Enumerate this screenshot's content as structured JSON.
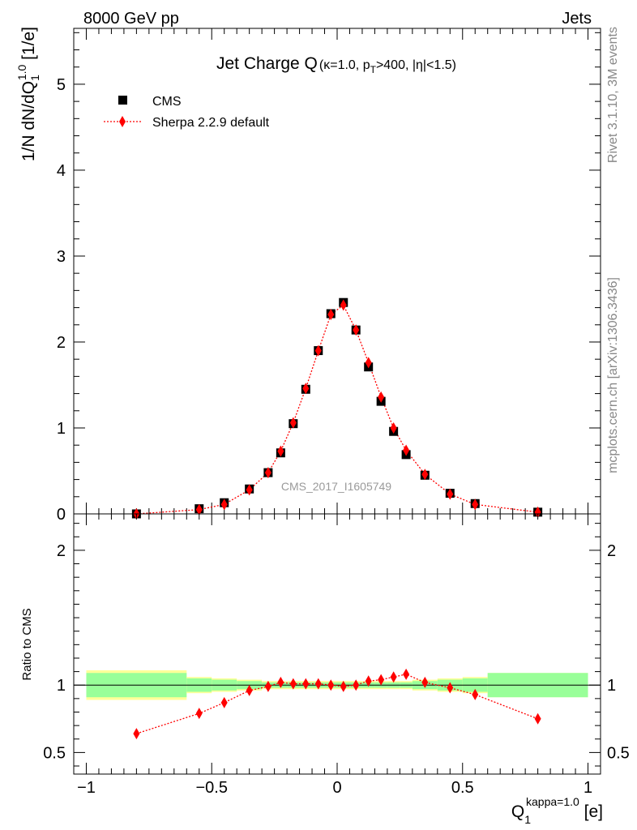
{
  "header": {
    "left": "8000 GeV pp",
    "right": "Jets"
  },
  "side_labels": {
    "rivet": "Rivet 3.1.10,  3M events",
    "mcplots": "mcplots.cern.ch [arXiv:1306.3436]"
  },
  "title": {
    "main": "Jet Charge Q",
    "params": "(κ=1.0, p",
    "params_sub": "T",
    "params_end": ">400, |η|<1.5)"
  },
  "watermark": "CMS_2017_I1605749",
  "y_label": {
    "pre": "1/N dN/dQ",
    "sub": "1",
    "sup": "1.0",
    "post": " [1/e]"
  },
  "ratio_label": "Ratio to CMS",
  "x_label": {
    "base": "Q",
    "sub": "1",
    "sup": "kappa=1.0",
    "post": " [e]"
  },
  "legend": {
    "data_label": "CMS",
    "mc_label": "Sherpa 2.2.9 default"
  },
  "colors": {
    "data": "#000000",
    "mc": "#ff0000",
    "band_inner": "#99ff99",
    "band_outer": "#ffff99"
  },
  "chart_data": [
    {
      "type": "scatter",
      "panel": "main",
      "xlim": [
        -1.05,
        1.05
      ],
      "ylim": [
        0,
        5.65
      ],
      "yticks": [
        0,
        1,
        2,
        3,
        4,
        5
      ],
      "series": [
        {
          "name": "CMS",
          "marker": "square",
          "x": [
            -0.8,
            -0.55,
            -0.45,
            -0.35,
            -0.275,
            -0.225,
            -0.175,
            -0.125,
            -0.075,
            -0.025,
            0.025,
            0.075,
            0.125,
            0.175,
            0.225,
            0.275,
            0.35,
            0.45,
            0.55,
            0.8
          ],
          "y": [
            0.0,
            0.06,
            0.13,
            0.29,
            0.48,
            0.71,
            1.05,
            1.45,
            1.9,
            2.33,
            2.46,
            2.14,
            1.71,
            1.31,
            0.96,
            0.69,
            0.45,
            0.24,
            0.12,
            0.02
          ]
        },
        {
          "name": "Sherpa 2.2.9 default",
          "marker": "diamond",
          "x": [
            -0.8,
            -0.55,
            -0.45,
            -0.35,
            -0.275,
            -0.225,
            -0.175,
            -0.125,
            -0.075,
            -0.025,
            0.025,
            0.075,
            0.125,
            0.175,
            0.225,
            0.275,
            0.35,
            0.45,
            0.55,
            0.8
          ],
          "y": [
            0.0,
            0.05,
            0.11,
            0.28,
            0.48,
            0.73,
            1.06,
            1.46,
            1.9,
            2.32,
            2.43,
            2.14,
            1.76,
            1.36,
            1.0,
            0.74,
            0.46,
            0.23,
            0.11,
            0.02
          ]
        }
      ]
    },
    {
      "type": "scatter",
      "panel": "ratio",
      "xlim": [
        -1.05,
        1.05
      ],
      "ylim": [
        0.34,
        2.27
      ],
      "yticks": [
        0.5,
        1,
        2
      ],
      "xticks": [
        -1,
        -0.5,
        0,
        0.5,
        1
      ],
      "xtick_labels": [
        "−1",
        "−0.5",
        "0",
        "0.5",
        "1"
      ],
      "bands": {
        "edges": [
          -1.0,
          -0.6,
          -0.5,
          -0.4,
          -0.3,
          -0.25,
          -0.2,
          -0.15,
          -0.1,
          -0.05,
          0.0,
          0.05,
          0.1,
          0.15,
          0.2,
          0.25,
          0.3,
          0.4,
          0.5,
          0.6,
          1.0
        ],
        "inner": [
          0.09,
          0.05,
          0.04,
          0.03,
          0.02,
          0.02,
          0.02,
          0.02,
          0.02,
          0.02,
          0.02,
          0.02,
          0.02,
          0.02,
          0.02,
          0.02,
          0.03,
          0.04,
          0.05,
          0.09
        ],
        "outer": [
          0.11,
          0.06,
          0.05,
          0.04,
          0.03,
          0.03,
          0.03,
          0.03,
          0.03,
          0.03,
          0.03,
          0.03,
          0.03,
          0.03,
          0.03,
          0.03,
          0.04,
          0.05,
          0.06,
          0.09
        ]
      },
      "series": [
        {
          "name": "Sherpa 2.2.9 default",
          "x": [
            -0.8,
            -0.55,
            -0.45,
            -0.35,
            -0.275,
            -0.225,
            -0.175,
            -0.125,
            -0.075,
            -0.025,
            0.025,
            0.075,
            0.125,
            0.175,
            0.225,
            0.275,
            0.35,
            0.45,
            0.55,
            0.8
          ],
          "y": [
            0.64,
            0.79,
            0.87,
            0.96,
            0.99,
            1.02,
            1.01,
            1.01,
            1.01,
            1.0,
            0.99,
            1.0,
            1.03,
            1.04,
            1.06,
            1.08,
            1.02,
            0.98,
            0.93,
            0.75
          ]
        }
      ]
    }
  ]
}
